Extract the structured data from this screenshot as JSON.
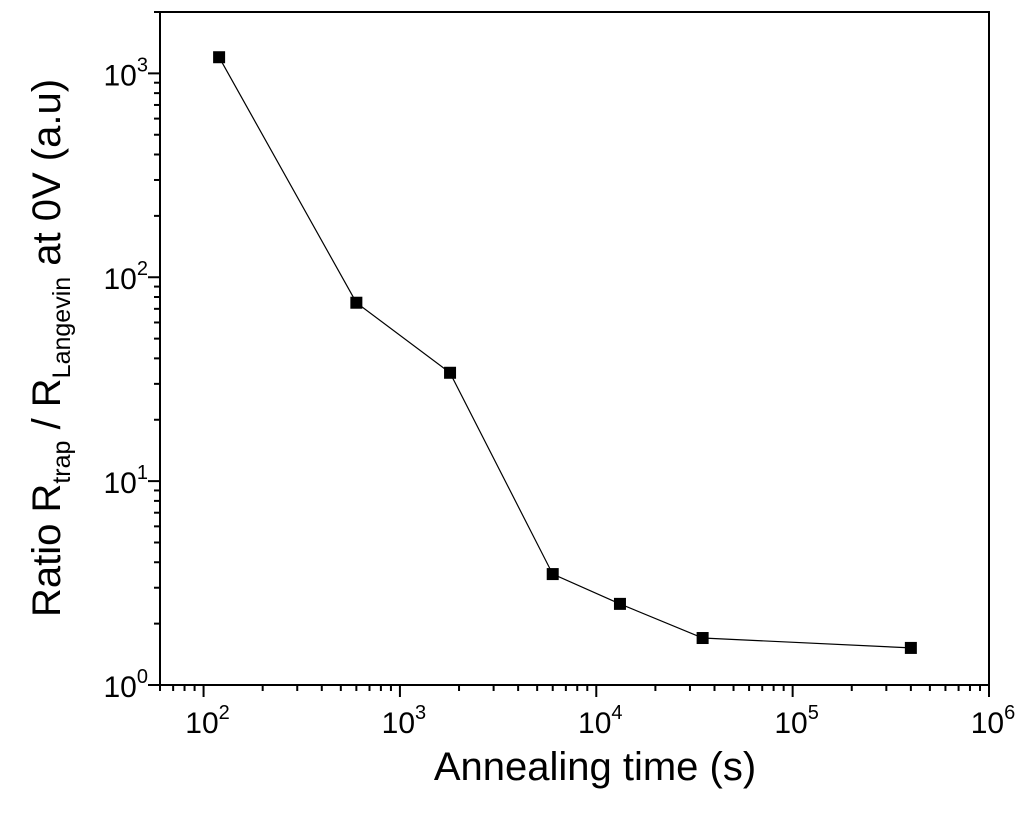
{
  "chart_data": {
    "type": "scatter",
    "xscale": "log",
    "yscale": "log",
    "xlim": [
      60,
      1000000
    ],
    "ylim": [
      1,
      2000
    ],
    "x_ticks": [
      {
        "value": 100,
        "base": "10",
        "exp": "2"
      },
      {
        "value": 1000,
        "base": "10",
        "exp": "3"
      },
      {
        "value": 10000,
        "base": "10",
        "exp": "4"
      },
      {
        "value": 100000,
        "base": "10",
        "exp": "5"
      },
      {
        "value": 1000000,
        "base": "10",
        "exp": "6"
      }
    ],
    "y_ticks": [
      {
        "value": 1,
        "base": "10",
        "exp": "0"
      },
      {
        "value": 10,
        "base": "10",
        "exp": "1"
      },
      {
        "value": 100,
        "base": "10",
        "exp": "2"
      },
      {
        "value": 1000,
        "base": "10",
        "exp": "3"
      }
    ],
    "xlabel": "Annealing time (s)",
    "ylabel": {
      "prefix": "Ratio R",
      "sub1": "trap",
      "middle": " / R",
      "sub2": "Langevin",
      "suffix": " at 0V (a.u)"
    },
    "series": [
      {
        "marker": "square",
        "line": true,
        "color": "#000000",
        "points": [
          {
            "x": 120,
            "y": 1200
          },
          {
            "x": 600,
            "y": 75
          },
          {
            "x": 1800,
            "y": 34
          },
          {
            "x": 6000,
            "y": 3.5
          },
          {
            "x": 13200,
            "y": 2.5
          },
          {
            "x": 34800,
            "y": 1.7
          },
          {
            "x": 400000,
            "y": 1.52
          }
        ]
      }
    ],
    "grid": false,
    "legend": "none"
  }
}
